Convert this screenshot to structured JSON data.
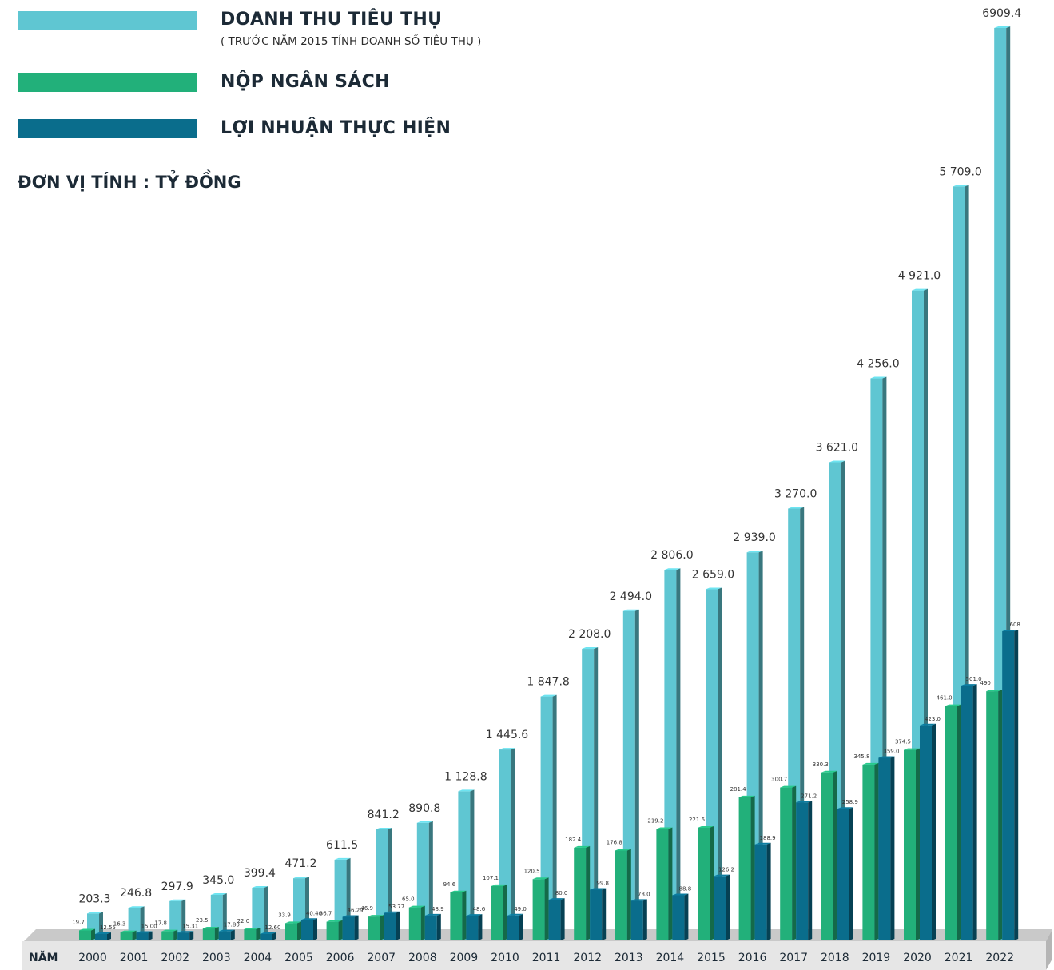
{
  "legend": {
    "revenue_label": "DOANH THU TIÊU THỤ",
    "revenue_note": "( TRƯỚC NĂM 2015 TÍNH DOANH SỐ TIÊU THỤ )",
    "budget_label": "NỘP NGÂN SÁCH",
    "profit_label": "LỢI NHUẬN THỰC HIỆN"
  },
  "unit_label": "ĐƠN VỊ TÍNH : TỶ ĐỒNG",
  "colors": {
    "revenue": "#5fc6d2",
    "budget": "#22b07a",
    "profit": "#0a6d8c",
    "floor": "#c8c8c8"
  },
  "chart_data": {
    "type": "bar",
    "xlabel": "NĂM",
    "categories": [
      "2000",
      "2001",
      "2002",
      "2003",
      "2004",
      "2005",
      "2006",
      "2007",
      "2008",
      "2009",
      "2010",
      "2011",
      "2012",
      "2013",
      "2014",
      "2015",
      "2016",
      "2017",
      "2018",
      "2019",
      "2020",
      "2021",
      "2022"
    ],
    "series": [
      {
        "name": "DOANH THU TIÊU THỤ",
        "values": [
          203.3,
          246.8,
          297.9,
          345.0,
          399.4,
          471.2,
          611.5,
          841.2,
          890.8,
          1128.8,
          1445.6,
          1847.8,
          2208.0,
          2494.0,
          2806.0,
          2659.0,
          2939.0,
          3270.0,
          3621.0,
          4256.0,
          4921.0,
          5709.0,
          6909.4
        ],
        "labels": [
          "203.3",
          "246.8",
          "297.9",
          "345.0",
          "399.4",
          "471.2",
          "611.5",
          "841.2",
          "890.8",
          "1 128.8",
          "1 445.6",
          "1 847.8",
          "2 208.0",
          "2 494.0",
          "2 806.0",
          "2 659.0",
          "2 939.0",
          "3 270.0",
          "3 621.0",
          "4 256.0",
          "4 921.0",
          "5 709.0",
          "6909.4"
        ]
      },
      {
        "name": "NỘP NGÂN SÁCH",
        "values": [
          19.7,
          16.3,
          17.8,
          23.5,
          22.0,
          33.9,
          36.7,
          46.9,
          65.0,
          94.6,
          107.1,
          120.5,
          182.4,
          176.8,
          219.2,
          221.6,
          281.4,
          300.7,
          330.3,
          345.8,
          374.5,
          461.0,
          490
        ],
        "labels": [
          "19.7",
          "16.3",
          "17.8",
          "23.5",
          "22.0",
          "33.9",
          "36.7",
          "46.9",
          "65.0",
          "94.6",
          "107.1",
          "120.5",
          "182.4",
          "176.8",
          "219.2",
          "221.6",
          "281.4",
          "300.7",
          "330.3",
          "345.8",
          "374.5",
          "461.0",
          "490"
        ]
      },
      {
        "name": "LỢI NHUẬN THỰC HIỆN",
        "values": [
          12.55,
          15.0,
          15.31,
          17.8,
          12.6,
          40.4,
          46.29,
          53.77,
          48.9,
          48.6,
          49.0,
          80.0,
          99.8,
          78.0,
          88.8,
          126.2,
          188.9,
          271.2,
          258.9,
          359.0,
          423.0,
          501.0,
          608
        ],
        "labels": [
          "12.55",
          "15.00",
          "15.31",
          "17.80",
          "12.60",
          "40.40",
          "46.29",
          "53.77",
          "48.9",
          "48.6",
          "49.0",
          "80.0",
          "99.8",
          "78.0",
          "88.8",
          "126.2",
          "188.9",
          "271.2",
          "258.9",
          "359.0",
          "423.0",
          "501.0",
          "608"
        ]
      }
    ]
  }
}
